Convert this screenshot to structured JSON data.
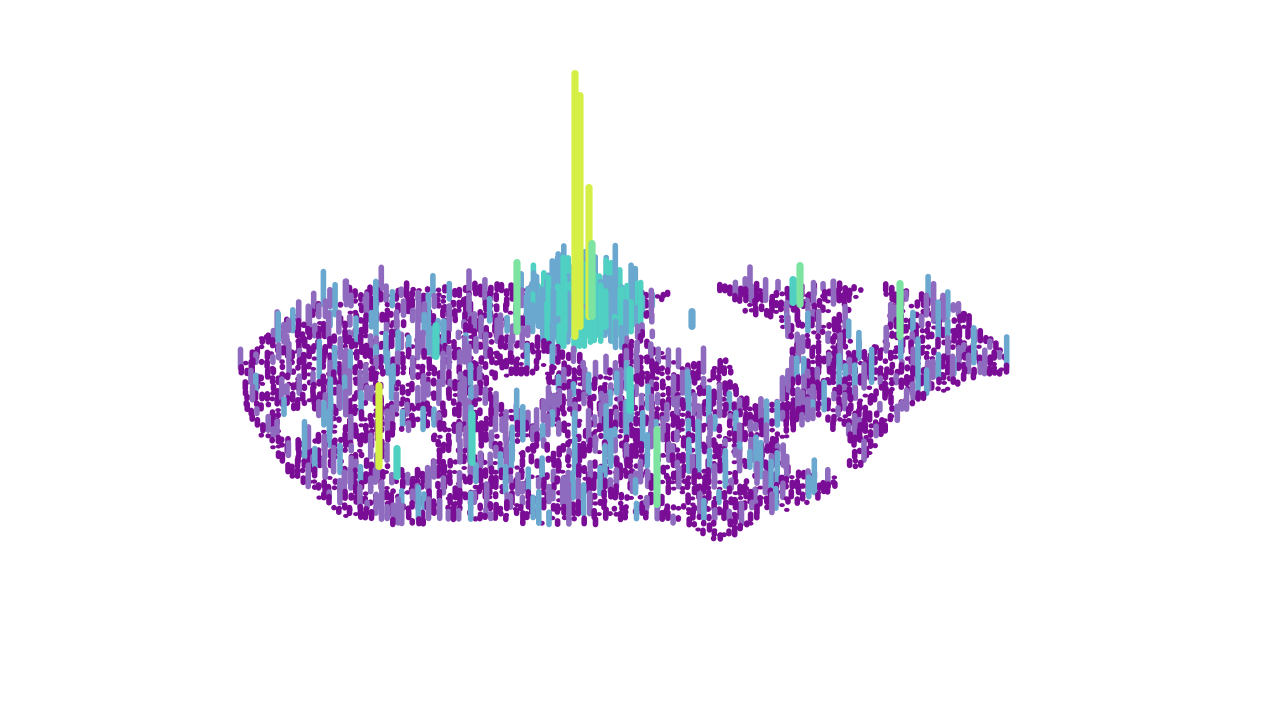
{
  "map": {
    "kind": "3d-column-density",
    "colorscale": {
      "low": "#7a0d96",
      "mid_low": "#8f6bbf",
      "mid": "#6aa8d0",
      "mid_high": "#4fd0c2",
      "high": "#7ce3a1",
      "peak": "#d6ef46"
    },
    "peak_marker_count": 14,
    "legend": "",
    "title": ""
  }
}
